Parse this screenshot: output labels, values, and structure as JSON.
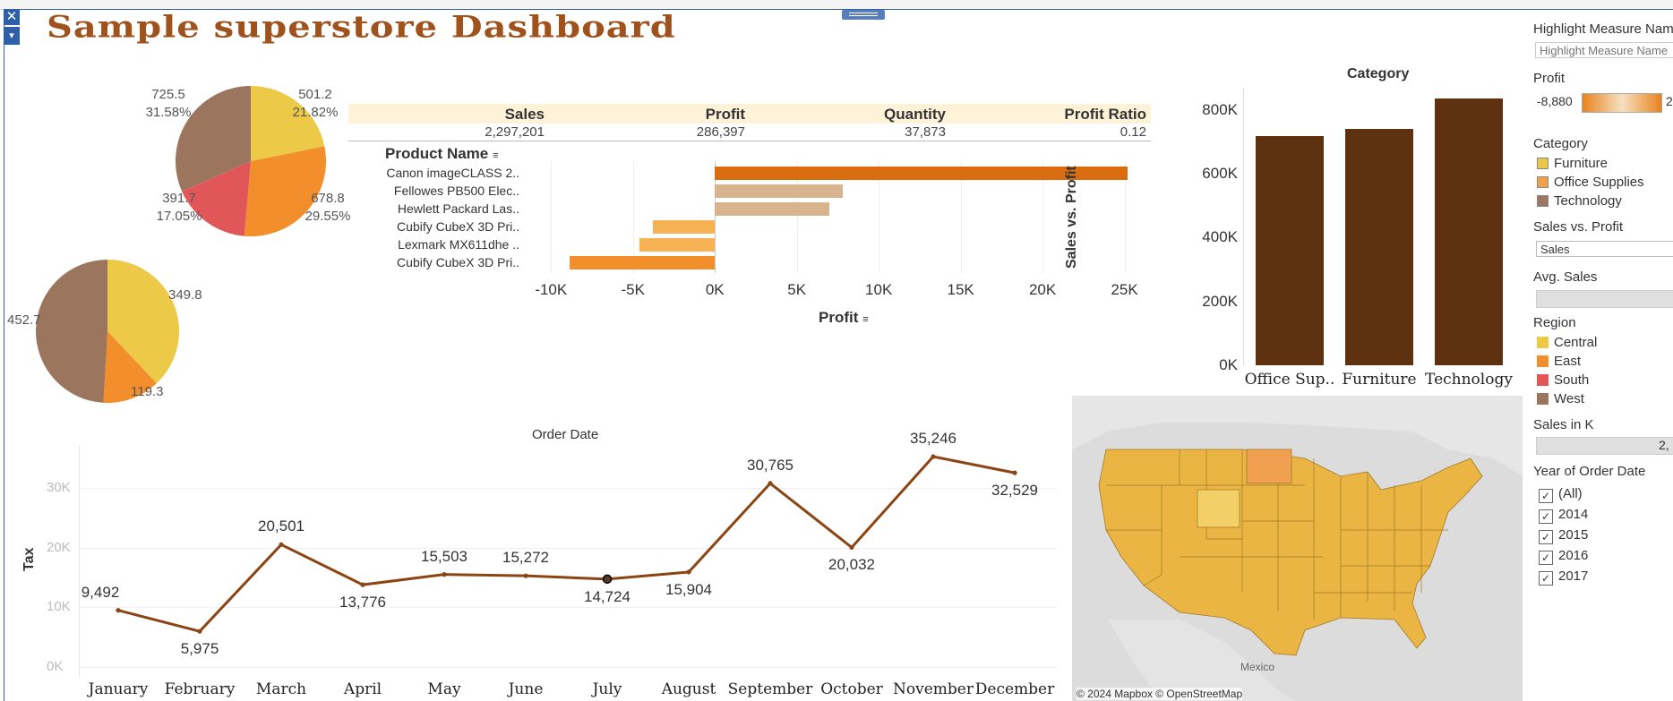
{
  "dashboard": {
    "title": "Sample superstore Dashboard",
    "close_icon": "close-icon",
    "menu_icon": "chevron-down-icon"
  },
  "summary": {
    "headers": [
      "Sales",
      "Profit",
      "Quantity",
      "Profit Ratio"
    ],
    "values": [
      "2,297,201",
      "286,397",
      "37,873",
      "0.12"
    ]
  },
  "product_chart": {
    "header": "Product Name",
    "axis_title": "Profit",
    "sort_icon": "sort-icon"
  },
  "order_chart": {
    "title": "Order Date",
    "y_title": "Tax"
  },
  "category_chart": {
    "title": "Category",
    "y_title": "Sales vs. Profit"
  },
  "map": {
    "attribution": "© 2024 Mapbox © OpenStreetMap",
    "country_label": "Mexico"
  },
  "sidebar": {
    "highlight_title": "Highlight Measure Nam",
    "highlight_placeholder": "Highlight Measure Name",
    "profit_title": "Profit",
    "profit_min": "-8,880",
    "profit_max": "2",
    "category_title": "Category",
    "category_items": [
      "Furniture",
      "Office Supplies",
      "Technology"
    ],
    "category_colors": [
      "#e9c84c",
      "#f0a04a",
      "#9c7864"
    ],
    "svp_title": "Sales vs. Profit",
    "svp_value": "Sales",
    "avg_title": "Avg. Sales",
    "region_title": "Region",
    "region_items": [
      "Central",
      "East",
      "South",
      "West"
    ],
    "region_colors": [
      "#edc948",
      "#f28e2b",
      "#e15759",
      "#9c755f"
    ],
    "salesk_title": "Sales in K",
    "salesk_value": "2,",
    "year_title": "Year of Order Date",
    "year_items": [
      "(All)",
      "2014",
      "2015",
      "2016",
      "2017"
    ]
  },
  "chart_data": [
    {
      "type": "pie",
      "title": "",
      "labels": [
        "Central",
        "East",
        "South",
        "West"
      ],
      "values": [
        501.2,
        678.8,
        391.7,
        725.5
      ],
      "percent_labels": [
        "21.82%",
        "29.55%",
        "17.05%",
        "31.58%"
      ],
      "value_labels": [
        "501.2",
        "678.8",
        "391.7",
        "725.5"
      ],
      "colors": [
        "#edc948",
        "#f28e2b",
        "#e15759",
        "#9c755f"
      ]
    },
    {
      "type": "pie",
      "title": "",
      "labels": [
        "Central",
        "East",
        "West"
      ],
      "values": [
        349.8,
        119.3,
        452.7
      ],
      "value_labels": [
        "349.8",
        "119.3",
        "452.7"
      ],
      "colors": [
        "#edc948",
        "#f28e2b",
        "#9c755f"
      ]
    },
    {
      "type": "bar",
      "orientation": "horizontal",
      "categories": [
        "Canon imageCLASS 2..",
        "Fellowes PB500 Elec..",
        "Hewlett Packard Las..",
        "Cubify CubeX 3D Pri..",
        "Lexmark MX611dhe ..",
        "Cubify CubeX 3D Pri.."
      ],
      "values": [
        25200,
        7800,
        7000,
        -3800,
        -4600,
        -8880
      ],
      "colors": [
        "#d96d0f",
        "#d8b48e",
        "#d8b48e",
        "#f7b254",
        "#f7b254",
        "#f28e2b"
      ],
      "xlabel": "Profit",
      "xlim": [
        -11000,
        26500
      ],
      "xticks": [
        "-10K",
        "-5K",
        "0K",
        "5K",
        "10K",
        "15K",
        "20K",
        "25K"
      ]
    },
    {
      "type": "bar",
      "categories": [
        "Office Sup..",
        "Furniture",
        "Technology"
      ],
      "values": [
        719000,
        742000,
        836000
      ],
      "title": "Category",
      "ylabel": "Sales vs. Profit",
      "ylim": [
        0,
        870000
      ],
      "yticks": [
        "0K",
        "200K",
        "400K",
        "600K",
        "800K"
      ],
      "color": "#5e3210"
    },
    {
      "type": "line",
      "title": "Order Date",
      "ylabel": "Tax",
      "categories": [
        "January",
        "February",
        "March",
        "April",
        "May",
        "June",
        "July",
        "August",
        "September",
        "October",
        "November",
        "December"
      ],
      "values": [
        9492,
        5975,
        20501,
        13776,
        15503,
        15272,
        14724,
        15904,
        30765,
        20032,
        35246,
        32529
      ],
      "value_labels": [
        "9,492",
        "5,975",
        "20,501",
        "13,776",
        "15,503",
        "15,272",
        "14,724",
        "15,904",
        "30,765",
        "20,032",
        "35,246",
        "32,529"
      ],
      "ylim": [
        0,
        36000
      ],
      "yticks": [
        "0K",
        "10K",
        "20K",
        "30K"
      ],
      "color": "#8b4513"
    }
  ]
}
